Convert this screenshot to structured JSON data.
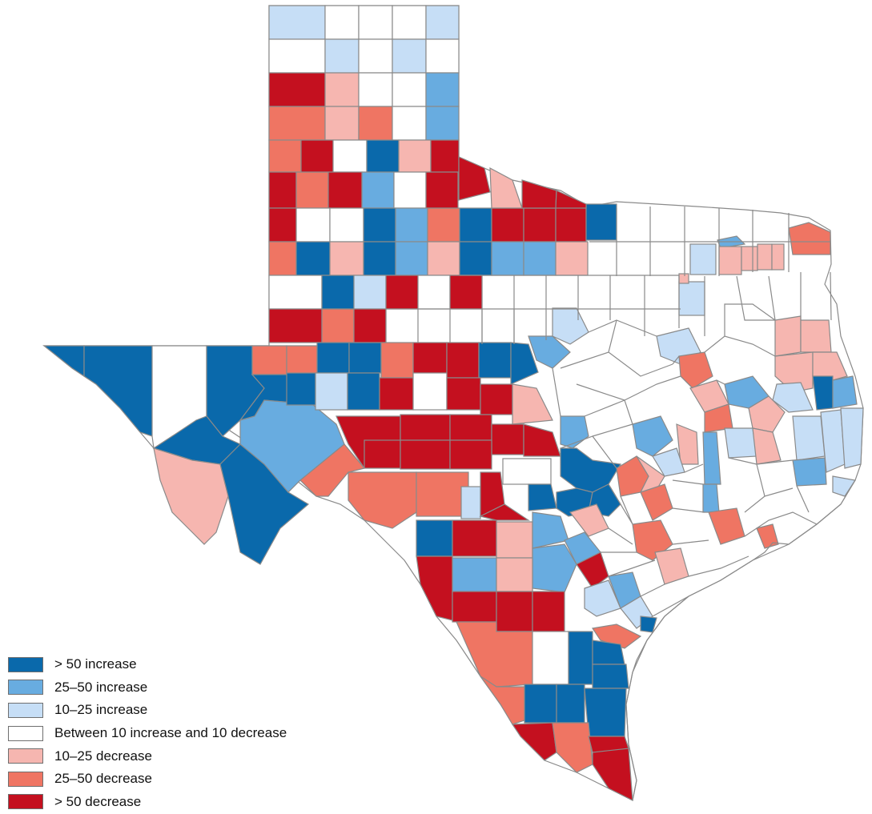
{
  "colors": {
    "increase_gt50": "#0a69ab",
    "increase_25_50": "#68ace0",
    "increase_10_25": "#c6def6",
    "neutral": "#ffffff",
    "decrease_10_25": "#f6b6b0",
    "decrease_25_50": "#ef7563",
    "decrease_gt50": "#c4101f",
    "border": "#8a8a8a",
    "coast": "#707070"
  },
  "legend": {
    "items": [
      {
        "key": "increase_gt50",
        "label": "> 50 increase"
      },
      {
        "key": "increase_25_50",
        "label": "25–50 increase"
      },
      {
        "key": "increase_10_25",
        "label": "10–25 increase"
      },
      {
        "key": "neutral",
        "label": "Between 10 increase and 10 decrease"
      },
      {
        "key": "decrease_10_25",
        "label": "10–25 decrease"
      },
      {
        "key": "decrease_25_50",
        "label": "25–50 decrease"
      },
      {
        "key": "decrease_gt50",
        "label": "> 50 decrease"
      }
    ]
  }
}
